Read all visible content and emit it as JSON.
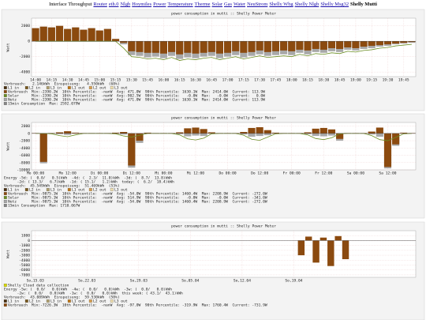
{
  "nav": {
    "label": "Interface Throughput",
    "links": [
      "Router",
      "eth.0",
      "Nlgb",
      "Hoymiles",
      "Power",
      "Temperature",
      "Therme",
      "Solar",
      "Gas",
      "Water",
      "NeuStrom",
      "Shelly Wbg",
      "Shelly Nlgb",
      "Shelly Msg32"
    ],
    "current": "Shelly Mutti"
  },
  "chart_data": [
    {
      "type": "bar",
      "title": "power consumption in mutti :: Shelly Power Meter",
      "y_label": "Watt",
      "categories": [
        "14:00",
        null,
        "14:15",
        null,
        "14:30",
        null,
        "14:45",
        null,
        "15:00",
        null,
        "15:15",
        null,
        "15:30",
        null,
        "15:45",
        null,
        "16:00",
        null,
        "16:15",
        null,
        "16:30",
        null,
        "16:45",
        null,
        "17:00",
        null,
        "17:15",
        null,
        "17:30",
        null,
        "17:45",
        null,
        "18:00",
        null,
        "18:15",
        null,
        "18:30",
        null,
        "18:45",
        null,
        "19:00",
        null,
        "19:15",
        null,
        "19:30",
        null,
        "19:45",
        null
      ],
      "series": [
        {
          "name": "Netz",
          "color": "#a8a8a8",
          "stats": "Min:-2390.2W  10th Percentile:  -nanW  Avg: 471.0W  90th Percentile: 1630.1W  Max: 2414.0W  Current: 113.9W",
          "values": [
            1700,
            1900,
            1800,
            2000,
            1600,
            1800,
            1500,
            1700,
            1400,
            1600,
            300,
            -400,
            -1800,
            -1900,
            -2100,
            -2000,
            -2200,
            -1900,
            -2300,
            -2100,
            -2200,
            -2000,
            -1900,
            -2200,
            -2000,
            -1800,
            -2100,
            -1900,
            -1700,
            -1900,
            -1800,
            -1700,
            -1800,
            -1500,
            -1700,
            -1400,
            -1500,
            -1300,
            -1400,
            -1100,
            -1200,
            -1000,
            -900,
            -700,
            -600,
            -400,
            -300,
            -200
          ]
        },
        {
          "name": "Verbrauch",
          "color": "#8b4a0f",
          "stats": "Min:-2390.2W  10th Percentile:  -nanW  Avg: 471.0W  90th Percentile: 1630.1W  Max: 2414.0W  Current: 113.9W",
          "values": [
            1700,
            1900,
            1800,
            2000,
            1600,
            1800,
            1500,
            1700,
            1400,
            1600,
            300,
            -200,
            -1300,
            -1400,
            -1500,
            -1500,
            -1600,
            -1400,
            -1700,
            -1500,
            -1600,
            -1500,
            -1400,
            -1600,
            -1500,
            -1300,
            -1500,
            -1400,
            -1200,
            -1400,
            -1300,
            -1200,
            -1300,
            -1100,
            -1200,
            -1000,
            -1100,
            -900,
            -1000,
            -800,
            -900,
            -700,
            -600,
            -500,
            -400,
            -300,
            -200,
            -100
          ]
        },
        {
          "name": "Solar",
          "color": "#6b8e23",
          "type": "line",
          "stats": "Min:-2390.2W  10th Percentile:  -nanW  Avg:-902.5W  90th Percentile:   -0.0W  Max:   -0.0W  Current:   0.0W",
          "values": [
            0,
            0,
            0,
            0,
            0,
            0,
            0,
            0,
            0,
            0,
            0,
            -900,
            -2000,
            -2100,
            -2300,
            -2200,
            -2400,
            -2100,
            -2500,
            -2300,
            -2400,
            -2200,
            -2100,
            -2400,
            -2200,
            -2000,
            -2300,
            -2100,
            -1900,
            -2100,
            -2000,
            -1900,
            -2000,
            -1700,
            -1900,
            -1600,
            -1700,
            -1500,
            -1600,
            -1300,
            -1400,
            -1200,
            -1100,
            -900,
            -800,
            -600,
            -500,
            -400
          ]
        }
      ],
      "ylim": [
        -4600,
        3000
      ],
      "yticks": [
        2000,
        0,
        -2000,
        -4000
      ],
      "grid": true,
      "summary": [
        "Verbrauch:   2.146kWh  Einspeisung:   4.550kWh  (68%)"
      ],
      "phases": [
        {
          "name": "L1 in",
          "color": "#4a3010"
        },
        {
          "name": "L2 in",
          "color": "#7a5a20"
        },
        {
          "name": "L3 in",
          "color": "#b0a070"
        },
        {
          "name": "L1 out",
          "color": "#c07818"
        },
        {
          "name": "L2 out",
          "color": "#d8a050"
        },
        {
          "name": "L3 out",
          "color": "#f0e0b0"
        }
      ],
      "footer": {
        "label": "15min Consumption  Max: 2592.079W",
        "color": "#888888"
      }
    },
    {
      "type": "bar",
      "title": "power consumption in mutti :: Shelly Power Meter",
      "y_label": "Watt",
      "categories": [
        "Mo 00:00",
        null,
        null,
        null,
        "Mo 12:00",
        null,
        null,
        null,
        "Di 00:00",
        null,
        null,
        null,
        "Di 12:00",
        null,
        null,
        null,
        "Mi 00:00",
        null,
        null,
        null,
        "Mi 12:00",
        null,
        null,
        null,
        "Do 00:00",
        null,
        null,
        null,
        "Do 12:00",
        null,
        null,
        null,
        "Fr 00:00",
        null,
        null,
        null,
        "Fr 12:00",
        null,
        null,
        null,
        "Sa 00:00",
        null,
        null,
        null,
        "Sa 12:00",
        null,
        null,
        null
      ],
      "series": [
        {
          "name": "Netz",
          "color": "#a8a8a8",
          "stats": "Min:-9875.1W  10th Percentile:  -nanW  Avg: -54.0W  90th Percentile: 1460.4W  Max: 2208.9W  Current: -272.0W",
          "values": [
            0,
            -8200,
            0,
            -200,
            -400,
            0,
            0,
            0,
            0,
            0,
            0,
            -300,
            -9400,
            -2600,
            0,
            0,
            0,
            0,
            -200,
            -800,
            -600,
            -700,
            0,
            0,
            0,
            0,
            -300,
            -900,
            -700,
            -500,
            0,
            0,
            0,
            0,
            -200,
            -700,
            -800,
            -600,
            -2000,
            0,
            0,
            0,
            -300,
            -900,
            -9600,
            -3400,
            0,
            0
          ]
        },
        {
          "name": "Verbrauch",
          "color": "#8b4a0f",
          "stats": "Min:-9875.1W  10th Percentile:  -nanW  Avg: -54.0W  90th Percentile: 1460.4W  Max: 2208.9W  Current: -272.0W",
          "values": [
            100,
            -7800,
            100,
            300,
            600,
            200,
            100,
            100,
            100,
            100,
            200,
            400,
            -8800,
            -2000,
            200,
            100,
            100,
            100,
            300,
            1400,
            1600,
            1200,
            300,
            100,
            100,
            100,
            400,
            1500,
            1700,
            900,
            200,
            100,
            100,
            100,
            300,
            1300,
            1500,
            1100,
            -1500,
            100,
            100,
            100,
            500,
            1600,
            -9200,
            -3000,
            200,
            100
          ]
        },
        {
          "name": "Solar",
          "color": "#6b8e23",
          "type": "line",
          "stats": "Min:-9875.1W  10th Percentile:  -nanW  Avg: 514.9W  90th Percentile:   -0.0W  Max:   -0.0W  Current: -341.0W",
          "values": [
            0,
            0,
            -100,
            -600,
            -900,
            -400,
            0,
            0,
            0,
            0,
            -100,
            -700,
            -1000,
            -500,
            0,
            0,
            0,
            0,
            -400,
            -1500,
            -1800,
            -1300,
            -100,
            0,
            0,
            0,
            -500,
            -1600,
            -1900,
            -1000,
            -100,
            0,
            0,
            0,
            -400,
            -1400,
            -1700,
            -1200,
            -100,
            0,
            0,
            0,
            -600,
            -1700,
            -2000,
            -1100,
            -100,
            0
          ]
        }
      ],
      "ylim": [
        -10000,
        3000
      ],
      "yticks": [
        2000,
        0,
        -2000,
        -4000,
        -6000,
        -8000,
        -10000
      ],
      "grid": true,
      "summary": [
        "Energy -5d: (  0.0/   0.5)kWh  -4d: (  2.3/  11.0)kWh  -3d: (  8.7/  13.8)kWh",
        "      -2d: ( 13.3/   6.7)kWh  -1d: ( 15.1/   1.2)kWh  today: (  6.2/  18.4)kWh",
        "Verbrauch:  45.549kWh  Einspeisung:  51.469kWh  (53%)"
      ],
      "phases": [
        {
          "name": "L1 in",
          "color": "#4a3010"
        },
        {
          "name": "L2 in",
          "color": "#7a5a20"
        },
        {
          "name": "L3 in",
          "color": "#b0a070"
        },
        {
          "name": "L1 out",
          "color": "#c07818"
        },
        {
          "name": "L2 out",
          "color": "#d8a050"
        },
        {
          "name": "L3 out",
          "color": "#f0e0b0"
        }
      ],
      "footer": {
        "label": "15min Consumption  Max: 1710.067W",
        "color": "#888888"
      }
    },
    {
      "type": "bar",
      "title": "power consumption in mutti :: Shelly Power Meter",
      "y_label": "Watt",
      "categories": [
        "So,15.03",
        null,
        null,
        null,
        null,
        null,
        null,
        "So,22.03",
        null,
        null,
        null,
        null,
        null,
        null,
        "So,29.03",
        null,
        null,
        null,
        null,
        null,
        null,
        "So,05.04",
        null,
        null,
        null,
        null,
        null,
        null,
        "So,12.04",
        null,
        null,
        null,
        null,
        null,
        null,
        "So,19.04",
        null,
        null,
        null,
        null,
        null,
        null,
        null,
        null,
        null,
        null,
        null,
        null,
        null,
        null,
        null,
        null
      ],
      "series": [
        {
          "name": "Verbrauch",
          "color": "#8b4a0f",
          "stats": "Min:-7226.3W  10th Percentile:  -nanW  Avg: -97.0W  90th Percentile: -319.9W  Max: 1760.4W  Current: -731.9W",
          "values": [
            null,
            null,
            null,
            null,
            null,
            null,
            null,
            null,
            null,
            null,
            null,
            null,
            null,
            null,
            null,
            null,
            null,
            null,
            null,
            null,
            null,
            null,
            null,
            null,
            null,
            null,
            null,
            null,
            null,
            null,
            null,
            null,
            null,
            null,
            null,
            null,
            -3000,
            800,
            -4500,
            600,
            -5200,
            900,
            -3800,
            null,
            null,
            null,
            null,
            null,
            null,
            null,
            null,
            null
          ]
        }
      ],
      "ylim": [
        -7500,
        2000
      ],
      "yticks": [
        1000,
        0,
        -1000,
        -2000,
        -3000,
        -4000,
        -5000,
        -6000,
        -7000
      ],
      "grid": true,
      "marker": {
        "label": "Shelly Cloud data collection",
        "color": "#d8d800"
      },
      "summary": [
        "Energy -5w: (  0.0/   0.0)kWh  -4w: (  0.0/   0.0)kWh  -3w: (  0.0/   0.0)kWh",
        "      -2w: (  0.0/   0.0)kWh  -1w: (  0.0/   0.0)kWh  this week: ( 43.1/  43.1)kWh",
        "Verbrauch:  43.089kWh  Einspeisung:  59.530kWh  (58%)"
      ],
      "phases": [
        {
          "name": "L1 in",
          "color": "#4a3010"
        },
        {
          "name": "L2 in",
          "color": "#7a5a20"
        },
        {
          "name": "L3 in",
          "color": "#b0a070"
        },
        {
          "name": "L1 out",
          "color": "#c07818"
        },
        {
          "name": "L2 out",
          "color": "#d8a050"
        },
        {
          "name": "L3 out",
          "color": "#f0e0b0"
        }
      ]
    }
  ]
}
